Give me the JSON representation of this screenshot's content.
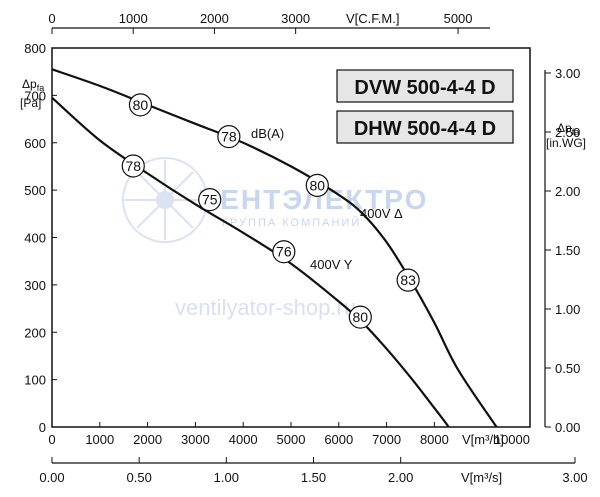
{
  "chart_data": {
    "type": "line",
    "models": [
      "DVW 500-4-4 D",
      "DHW 500-4-4 D"
    ],
    "xlabel_m3h": "V[m³/h]",
    "xlabel_cfm": "V[C.F.M.]",
    "xlabel_m3s": "V[m³/s]",
    "ylabel_pa": {
      "main": "Δp",
      "sub": "fa",
      "unit": "[Pa]"
    },
    "ylabel_inwg": {
      "main": "Δp",
      "sub": "fa",
      "unit": "[in.WG]"
    },
    "xlim_m3h": [
      0,
      10000
    ],
    "ylim_pa": [
      0,
      800
    ],
    "x_ticks_m3h": [
      "0",
      "1000",
      "2000",
      "3000",
      "4000",
      "5000",
      "6000",
      "7000",
      "8000",
      "10000"
    ],
    "x_ticks_cfm": [
      "0",
      "1000",
      "2000",
      "3000",
      "5000"
    ],
    "x_ticks_m3s": [
      "0.00",
      "0.50",
      "1.00",
      "1.50",
      "2.00",
      "3.00"
    ],
    "y_ticks_pa": [
      "0",
      "100",
      "200",
      "300",
      "400",
      "500",
      "600",
      "700",
      "800"
    ],
    "y_ticks_inwg": [
      "0.00",
      "0.50",
      "1.00",
      "1.50",
      "2.00",
      "2.50",
      "3.00"
    ],
    "series": [
      {
        "name": "400V Δ",
        "color": "#111111",
        "x": [
          0,
          1000,
          2000,
          3000,
          4000,
          5000,
          6000,
          6500,
          7000,
          7500,
          8000,
          8500,
          9300
        ],
        "y": [
          755,
          720,
          680,
          640,
          600,
          550,
          490,
          450,
          390,
          310,
          220,
          120,
          0
        ]
      },
      {
        "name": "400V Y",
        "color": "#111111",
        "x": [
          0,
          1000,
          2000,
          3000,
          4000,
          5000,
          6000,
          6500,
          7000,
          7500,
          8000,
          8300
        ],
        "y": [
          695,
          605,
          535,
          470,
          410,
          345,
          265,
          220,
          165,
          105,
          40,
          0
        ]
      }
    ],
    "annotations": {
      "db_unit_label": "dB(A)",
      "sound_markers": [
        {
          "label": "80",
          "x": 1850,
          "y": 680
        },
        {
          "label": "78",
          "x": 3700,
          "y": 613
        },
        {
          "label": "80",
          "x": 5550,
          "y": 510
        },
        {
          "label": "83",
          "x": 7450,
          "y": 310
        },
        {
          "label": "78",
          "x": 1700,
          "y": 551
        },
        {
          "label": "75",
          "x": 3300,
          "y": 480
        },
        {
          "label": "76",
          "x": 4850,
          "y": 370
        },
        {
          "label": "80",
          "x": 6450,
          "y": 232
        }
      ]
    },
    "grid": false
  },
  "watermark": {
    "brand": "ВЕНТЭЛЕКТРО",
    "tagline": "ГРУППА КОМПАНИЙ",
    "site": "ventilyator-shop.ru"
  }
}
